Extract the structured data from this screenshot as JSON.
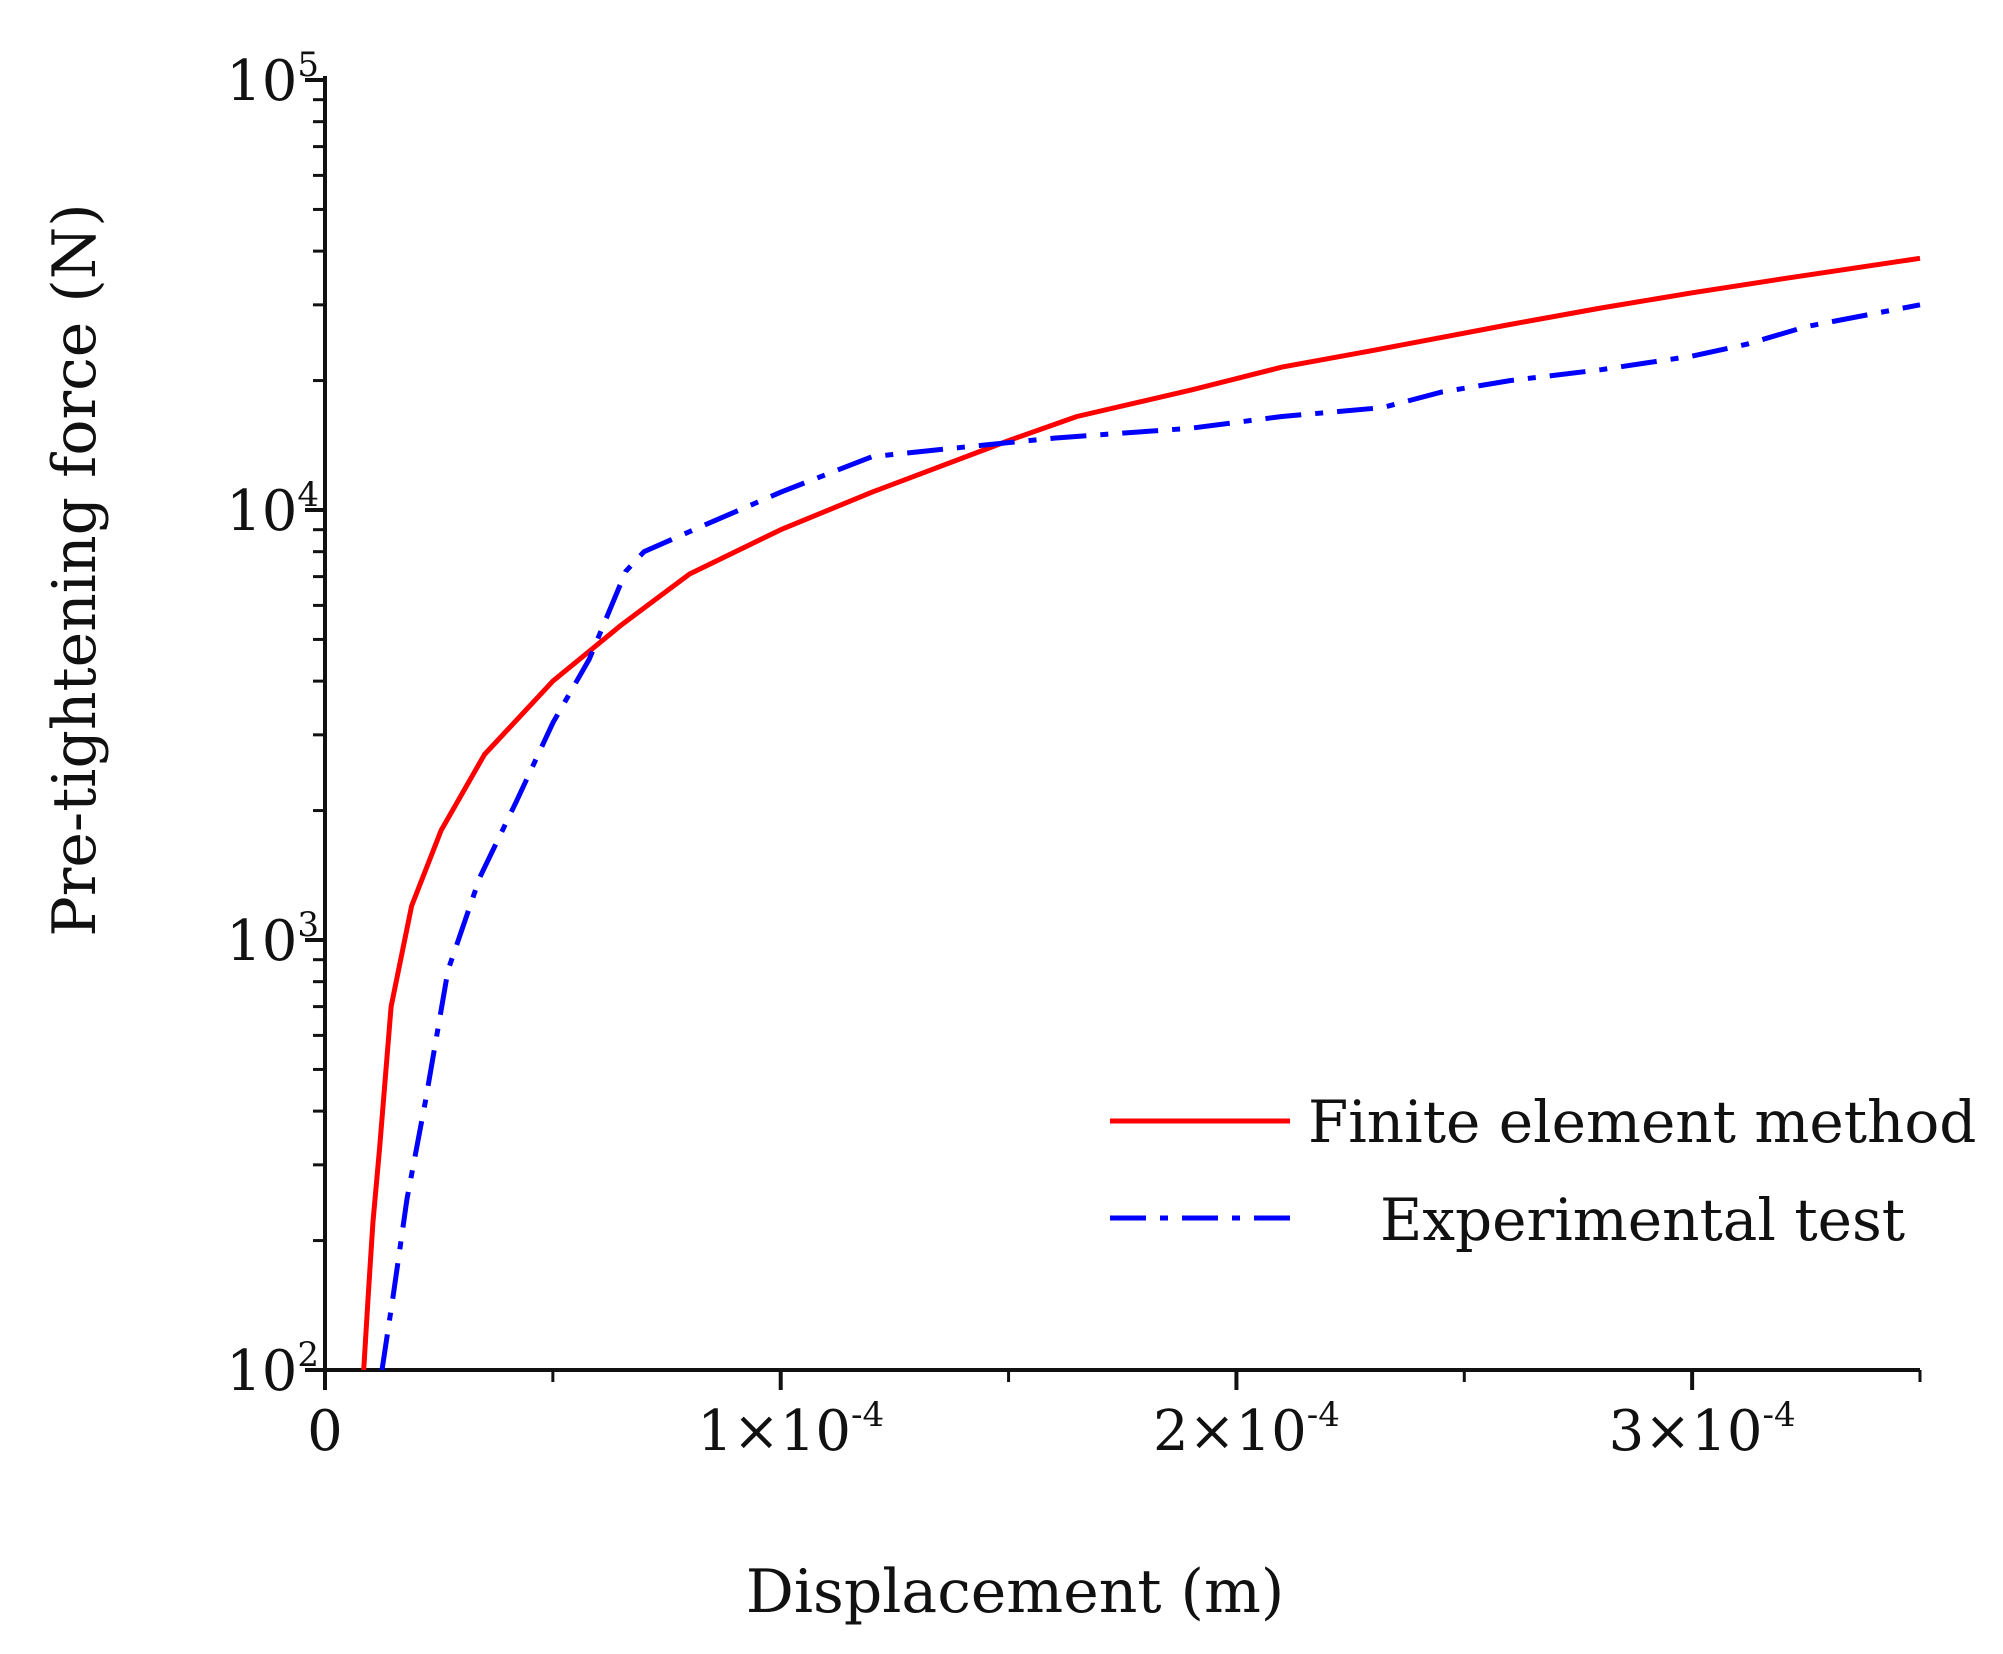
{
  "chart_data": {
    "type": "line",
    "title": "",
    "xlabel": "Displacement (m)",
    "ylabel": "Pre-tightening force (N)",
    "xlim": [
      0,
      0.00035
    ],
    "ylim": [
      100,
      100000
    ],
    "yscale": "log",
    "grid": false,
    "legend_position": "lower-right",
    "x_ticks": [
      {
        "value": 0,
        "label": "0",
        "exp": ""
      },
      {
        "value": 0.0001,
        "label": "1×10",
        "exp": "-4"
      },
      {
        "value": 0.0002,
        "label": "2×10",
        "exp": "-4"
      },
      {
        "value": 0.0003,
        "label": "3×10",
        "exp": "-4"
      }
    ],
    "y_ticks": [
      {
        "value": 100,
        "label": "10",
        "exp": "2"
      },
      {
        "value": 1000,
        "label": "10",
        "exp": "3"
      },
      {
        "value": 10000,
        "label": "10",
        "exp": "4"
      },
      {
        "value": 100000,
        "label": "10",
        "exp": "5"
      }
    ],
    "series": [
      {
        "name": "Finite element method",
        "color": "#ff0000",
        "style": "solid",
        "x": [
          8.5e-06,
          9.5e-06,
          1.05e-05,
          1.2e-05,
          1.45e-05,
          1.9e-05,
          2.55e-05,
          3.5e-05,
          5e-05,
          6.5e-05,
          8e-05,
          0.0001,
          0.00012,
          0.00015,
          0.000165,
          0.00019,
          0.00021,
          0.00023,
          0.00026,
          0.00028,
          0.0003,
          0.00032,
          0.00035
        ],
        "values": [
          100,
          150,
          220,
          330,
          700,
          1200,
          1800,
          2700,
          4000,
          5400,
          7100,
          9000,
          11000,
          14500,
          16500,
          19000,
          21500,
          23500,
          27000,
          29500,
          32000,
          34500,
          38500
        ]
      },
      {
        "name": "Experimental test",
        "color": "#0000ff",
        "style": "dashdot",
        "x": [
          1.25e-05,
          1.5e-05,
          1.8e-05,
          2.2e-05,
          2.7e-05,
          3.4e-05,
          4.2e-05,
          5e-05,
          5.8e-05,
          6.6e-05,
          7e-05,
          8.2e-05,
          0.0001,
          0.00012,
          0.00014,
          0.00016,
          0.00019,
          0.00021,
          0.000232,
          0.000245,
          0.00026,
          0.00028,
          0.0003,
          0.000312,
          0.000325,
          0.00035
        ],
        "values": [
          100,
          150,
          250,
          420,
          850,
          1400,
          2100,
          3200,
          4500,
          7200,
          8000,
          9100,
          11000,
          13300,
          14000,
          14700,
          15500,
          16500,
          17300,
          18800,
          20000,
          21200,
          22800,
          24300,
          26700,
          30000
        ]
      }
    ]
  }
}
